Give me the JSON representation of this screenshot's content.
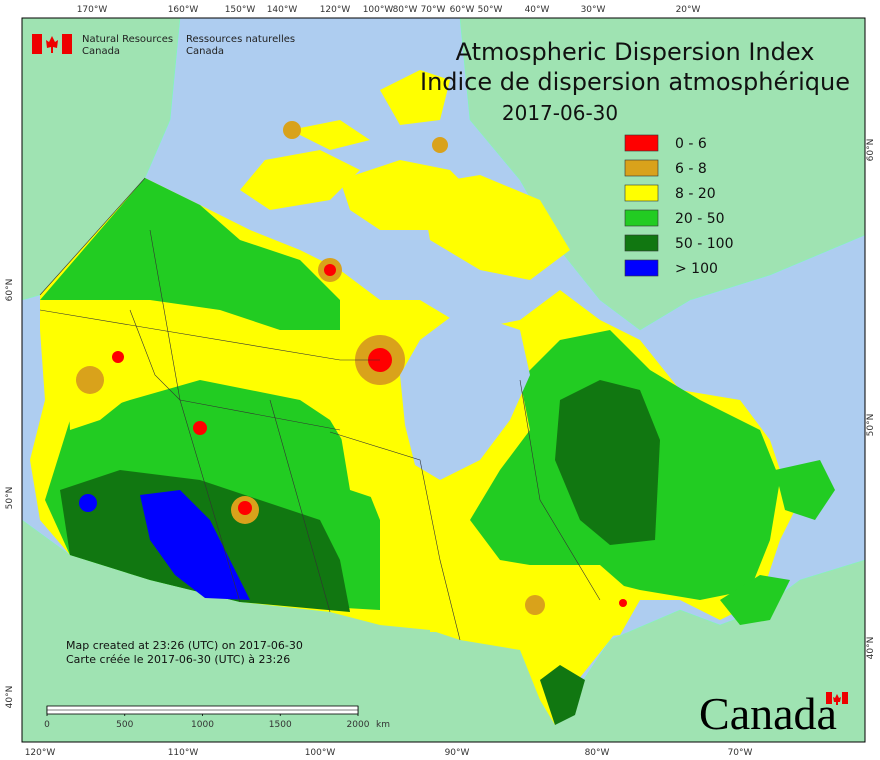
{
  "agency": {
    "en": [
      "Natural Resources",
      "Canada"
    ],
    "fr": [
      "Ressources naturelles",
      "Canada"
    ]
  },
  "title": [
    "Atmospheric Dispersion Index",
    "Indice de dispersion atmosphérique"
  ],
  "date": "2017-06-30",
  "legend": [
    {
      "label": "0 - 6",
      "color": "#ff0000"
    },
    {
      "label": "6 - 8",
      "color": "#d9a21b"
    },
    {
      "label": "8 - 20",
      "color": "#ffff00"
    },
    {
      "label": "20 - 50",
      "color": "#22cc22"
    },
    {
      "label": "50 - 100",
      "color": "#117711"
    },
    {
      "label": "> 100",
      "color": "#0000ff"
    }
  ],
  "graticule": {
    "top": [
      "170°W",
      "160°W",
      "150°W",
      "140°W",
      "120°W",
      "100°W",
      "80°W",
      "70°W",
      "60°W",
      "50°W",
      "40°W",
      "30°W",
      "20°W"
    ],
    "bottom": [
      "120°W",
      "110°W",
      "100°W",
      "90°W",
      "80°W",
      "70°W"
    ],
    "left": [
      "60°N",
      "50°N",
      "40°N"
    ],
    "right": [
      "60°N",
      "50°N",
      "40°N"
    ]
  },
  "notes": [
    "Map created at 23:26 (UTC) on 2017-06-30",
    "Carte créée le 2017-06-30 (UTC) à 23:26"
  ],
  "scale_bar": {
    "ticks": [
      0,
      500,
      1000,
      1500,
      2000
    ],
    "unit": "km"
  },
  "wordmark": "Canada"
}
